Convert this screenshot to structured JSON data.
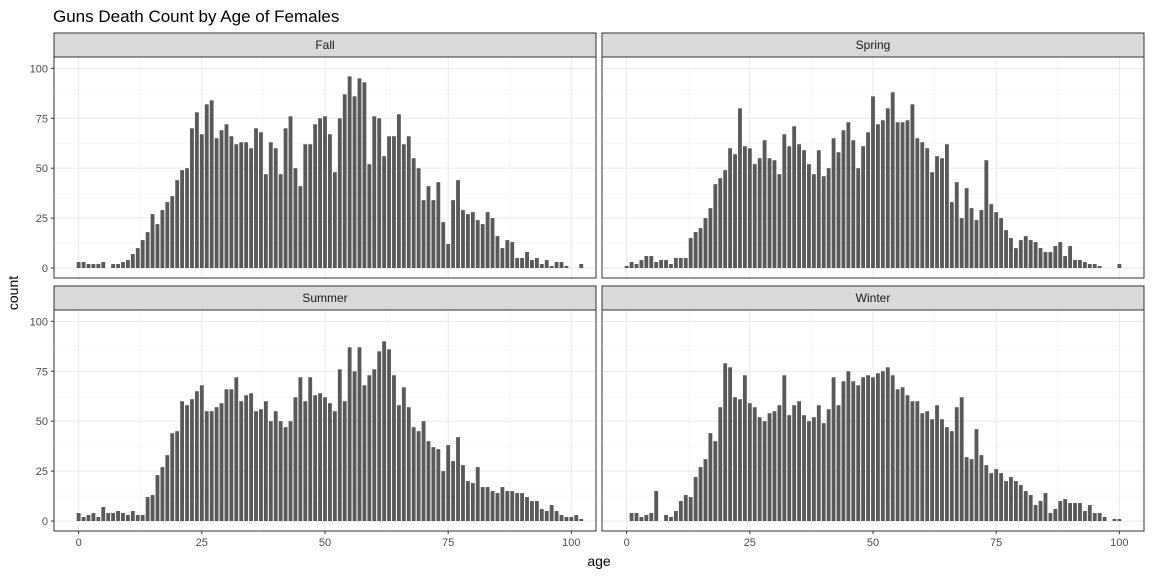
{
  "chart_data": {
    "type": "bar",
    "title": "Guns Death Count by Age of Females",
    "xlabel": "age",
    "ylabel": "count",
    "xlim": [
      -5,
      105
    ],
    "ylim": [
      0,
      100
    ],
    "x_ticks": [
      0,
      25,
      50,
      75,
      100
    ],
    "y_ticks": [
      0,
      25,
      50,
      75,
      100
    ],
    "grid": true,
    "bar_color": "#595959",
    "panels": [
      {
        "name": "Fall",
        "values": [
          3,
          3,
          2,
          2,
          2,
          3,
          0,
          2,
          2,
          3,
          4,
          7,
          10,
          14,
          18,
          27,
          22,
          29,
          33,
          36,
          44,
          49,
          50,
          70,
          78,
          67,
          82,
          84,
          65,
          69,
          72,
          66,
          62,
          63,
          63,
          60,
          70,
          68,
          47,
          63,
          60,
          47,
          70,
          76,
          50,
          41,
          62,
          62,
          72,
          75,
          76,
          67,
          48,
          75,
          87,
          96,
          86,
          95,
          93,
          52,
          76,
          75,
          56,
          66,
          66,
          77,
          62,
          66,
          55,
          50,
          34,
          41,
          34,
          43,
          23,
          12,
          34,
          44,
          29,
          27,
          28,
          24,
          22,
          28,
          25,
          16,
          10,
          14,
          13,
          5,
          5,
          8,
          4,
          5,
          2,
          4,
          1,
          3,
          3,
          1,
          0,
          0,
          2,
          0
        ],
        "x": [
          0,
          1,
          2,
          3,
          4,
          5,
          6,
          7,
          8,
          9,
          10,
          11,
          12,
          13,
          14,
          15,
          16,
          17,
          18,
          19,
          20,
          21,
          22,
          23,
          24,
          25,
          26,
          27,
          28,
          29,
          30,
          31,
          32,
          33,
          34,
          35,
          36,
          37,
          38,
          39,
          40,
          41,
          42,
          43,
          44,
          45,
          46,
          47,
          48,
          49,
          50,
          51,
          52,
          53,
          54,
          55,
          56,
          57,
          58,
          59,
          60,
          61,
          62,
          63,
          64,
          65,
          66,
          67,
          68,
          69,
          70,
          71,
          72,
          73,
          74,
          75,
          76,
          77,
          78,
          79,
          80,
          81,
          82,
          83,
          84,
          85,
          86,
          87,
          88,
          89,
          90,
          91,
          92,
          93,
          94,
          95,
          96,
          97,
          98,
          99,
          100,
          101,
          102,
          103
        ]
      },
      {
        "name": "Spring",
        "values": [
          1,
          3,
          2,
          4,
          6,
          6,
          3,
          4,
          4,
          2,
          5,
          5,
          5,
          15,
          18,
          20,
          25,
          30,
          42,
          45,
          49,
          60,
          57,
          80,
          61,
          60,
          52,
          55,
          64,
          55,
          54,
          47,
          67,
          61,
          71,
          62,
          59,
          52,
          47,
          59,
          46,
          50,
          65,
          58,
          69,
          73,
          64,
          50,
          61,
          68,
          86,
          72,
          74,
          80,
          88,
          73,
          73,
          74,
          82,
          65,
          63,
          60,
          48,
          56,
          55,
          62,
          33,
          43,
          25,
          40,
          30,
          24,
          29,
          54,
          32,
          28,
          25,
          19,
          15,
          10,
          14,
          16,
          14,
          13,
          10,
          8,
          8,
          11,
          13,
          6,
          11,
          4,
          4,
          3,
          2,
          2,
          1,
          0,
          0,
          0,
          2,
          0,
          0,
          0
        ],
        "x": [
          0,
          1,
          2,
          3,
          4,
          5,
          6,
          7,
          8,
          9,
          10,
          11,
          12,
          13,
          14,
          15,
          16,
          17,
          18,
          19,
          20,
          21,
          22,
          23,
          24,
          25,
          26,
          27,
          28,
          29,
          30,
          31,
          32,
          33,
          34,
          35,
          36,
          37,
          38,
          39,
          40,
          41,
          42,
          43,
          44,
          45,
          46,
          47,
          48,
          49,
          50,
          51,
          52,
          53,
          54,
          55,
          56,
          57,
          58,
          59,
          60,
          61,
          62,
          63,
          64,
          65,
          66,
          67,
          68,
          69,
          70,
          71,
          72,
          73,
          74,
          75,
          76,
          77,
          78,
          79,
          80,
          81,
          82,
          83,
          84,
          85,
          86,
          87,
          88,
          89,
          90,
          91,
          92,
          93,
          94,
          95,
          96,
          97,
          98,
          99,
          100,
          101,
          102,
          103
        ]
      },
      {
        "name": "Summer",
        "values": [
          4,
          2,
          3,
          4,
          2,
          7,
          4,
          4,
          5,
          4,
          3,
          5,
          3,
          3,
          12,
          13,
          23,
          27,
          33,
          44,
          45,
          60,
          58,
          61,
          65,
          68,
          55,
          55,
          57,
          59,
          66,
          66,
          72,
          60,
          63,
          64,
          55,
          56,
          60,
          50,
          55,
          50,
          47,
          50,
          62,
          72,
          60,
          72,
          63,
          64,
          62,
          59,
          55,
          76,
          60,
          87,
          75,
          87,
          68,
          73,
          76,
          85,
          90,
          86,
          73,
          58,
          67,
          57,
          47,
          45,
          50,
          40,
          37,
          36,
          25,
          38,
          30,
          42,
          28,
          20,
          19,
          27,
          17,
          17,
          15,
          14,
          17,
          15,
          15,
          14,
          14,
          12,
          10,
          10,
          6,
          5,
          8,
          5,
          3,
          2,
          2,
          3,
          1,
          0
        ],
        "x": [
          0,
          1,
          2,
          3,
          4,
          5,
          6,
          7,
          8,
          9,
          10,
          11,
          12,
          13,
          14,
          15,
          16,
          17,
          18,
          19,
          20,
          21,
          22,
          23,
          24,
          25,
          26,
          27,
          28,
          29,
          30,
          31,
          32,
          33,
          34,
          35,
          36,
          37,
          38,
          39,
          40,
          41,
          42,
          43,
          44,
          45,
          46,
          47,
          48,
          49,
          50,
          51,
          52,
          53,
          54,
          55,
          56,
          57,
          58,
          59,
          60,
          61,
          62,
          63,
          64,
          65,
          66,
          67,
          68,
          69,
          70,
          71,
          72,
          73,
          74,
          75,
          76,
          77,
          78,
          79,
          80,
          81,
          82,
          83,
          84,
          85,
          86,
          87,
          88,
          89,
          90,
          91,
          92,
          93,
          94,
          95,
          96,
          97,
          98,
          99,
          100,
          101,
          102,
          103
        ]
      },
      {
        "name": "Winter",
        "values": [
          0,
          4,
          4,
          2,
          3,
          4,
          15,
          0,
          3,
          2,
          5,
          10,
          13,
          12,
          22,
          27,
          31,
          44,
          40,
          57,
          79,
          77,
          62,
          61,
          73,
          59,
          57,
          52,
          50,
          54,
          55,
          58,
          73,
          53,
          58,
          60,
          53,
          50,
          52,
          58,
          49,
          56,
          72,
          58,
          70,
          75,
          70,
          68,
          72,
          73,
          72,
          74,
          75,
          77,
          73,
          66,
          67,
          63,
          60,
          60,
          54,
          55,
          51,
          58,
          51,
          47,
          45,
          57,
          62,
          32,
          31,
          46,
          33,
          28,
          24,
          26,
          24,
          20,
          22,
          20,
          18,
          15,
          13,
          8,
          10,
          14,
          4,
          6,
          10,
          11,
          9,
          9,
          9,
          5,
          8,
          4,
          4,
          2,
          0,
          1,
          1,
          0,
          0,
          0
        ],
        "x": [
          0,
          1,
          2,
          3,
          4,
          5,
          6,
          7,
          8,
          9,
          10,
          11,
          12,
          13,
          14,
          15,
          16,
          17,
          18,
          19,
          20,
          21,
          22,
          23,
          24,
          25,
          26,
          27,
          28,
          29,
          30,
          31,
          32,
          33,
          34,
          35,
          36,
          37,
          38,
          39,
          40,
          41,
          42,
          43,
          44,
          45,
          46,
          47,
          48,
          49,
          50,
          51,
          52,
          53,
          54,
          55,
          56,
          57,
          58,
          59,
          60,
          61,
          62,
          63,
          64,
          65,
          66,
          67,
          68,
          69,
          70,
          71,
          72,
          73,
          74,
          75,
          76,
          77,
          78,
          79,
          80,
          81,
          82,
          83,
          84,
          85,
          86,
          87,
          88,
          89,
          90,
          91,
          92,
          93,
          94,
          95,
          96,
          97,
          98,
          99,
          100,
          101,
          102,
          103
        ]
      }
    ]
  }
}
